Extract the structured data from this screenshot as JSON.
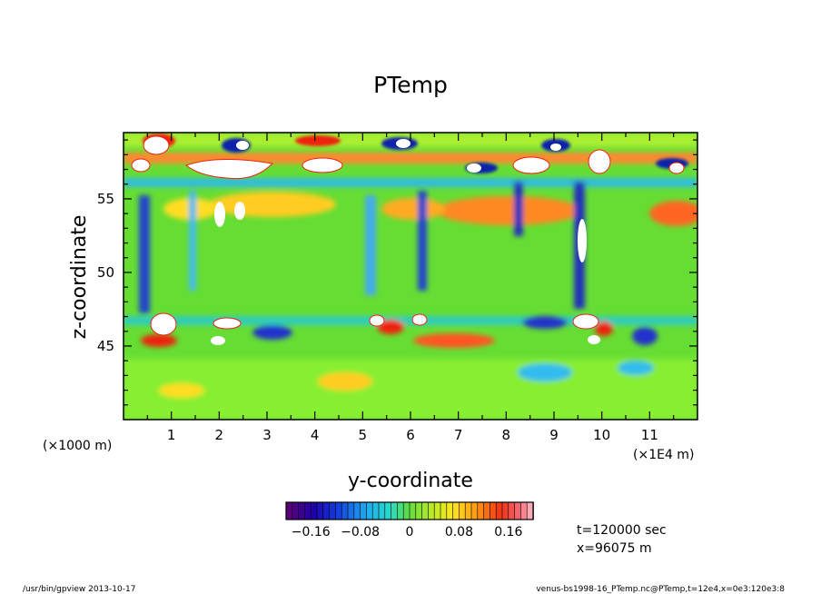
{
  "chart_data": {
    "type": "heatmap",
    "title": "PTemp",
    "xlabel": "y-coordinate",
    "ylabel": "z-coordinate",
    "xlim": [
      0,
      12
    ],
    "ylim": [
      40,
      59.5
    ],
    "x_ticks": [
      "1",
      "2",
      "3",
      "4",
      "5",
      "6",
      "7",
      "8",
      "9",
      "10",
      "11"
    ],
    "y_ticks": [
      "45",
      "50",
      "55"
    ],
    "x_multiplier_label": "(×1E4 m)",
    "y_multiplier_label": "(×1000 m)",
    "colorbar": {
      "range": [
        -0.2,
        0.2
      ],
      "tick_labels": [
        "−0.16",
        "−0.08",
        "0",
        "0.08",
        "0.16"
      ],
      "tick_values": [
        -0.16,
        -0.08,
        0,
        0.08,
        0.16
      ]
    },
    "annotations": [
      "t=120000 sec",
      "x=96075 m"
    ]
  },
  "footer": {
    "left": "/usr/bin/gpview  2013-10-17",
    "right": "venus-bs1998-16_PTemp.nc@PTemp,t=12e4,x=0e3:120e3:8"
  },
  "colors": {
    "background_field": "#66dd33",
    "positive_anomaly": "#ee3311",
    "negative_anomaly": "#1122bb",
    "extreme_clipped": "#ffffff"
  }
}
